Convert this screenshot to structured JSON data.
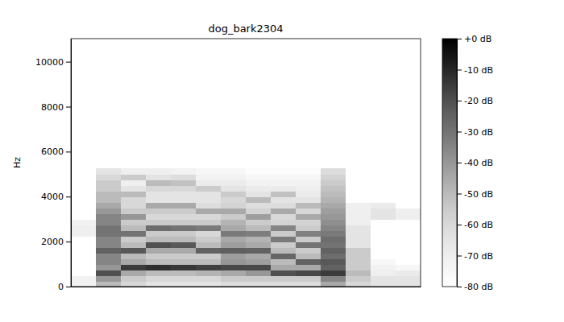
{
  "chart_data": {
    "type": "heatmap",
    "title": "dog_bark2304",
    "ylabel": "Hz",
    "xlim": [
      0,
      1.4
    ],
    "ylim": [
      0,
      11025
    ],
    "yticks": [
      0,
      2000,
      4000,
      6000,
      8000,
      10000
    ],
    "tick_labels": "y",
    "x": [
      0,
      0.1,
      0.2,
      0.3,
      0.4,
      0.5,
      0.6,
      0.7,
      0.8,
      0.9,
      1.0,
      1.1,
      1.2,
      1.3,
      1.4
    ],
    "y": [
      0,
      250,
      500,
      750,
      1000,
      1250,
      1500,
      1750,
      2000,
      2250,
      2500,
      2750,
      3000,
      3250,
      3500,
      3750,
      4000,
      4250,
      4500,
      4750,
      5000,
      5250
    ],
    "z": [
      [
        -72,
        -72,
        -80,
        -80,
        -80,
        -80,
        -80,
        -80,
        -80,
        -70,
        -70,
        -72,
        -80,
        -80,
        -80,
        -80,
        -80,
        -80,
        -80,
        -80,
        -80
      ],
      [
        -50,
        -40,
        -20,
        -40,
        -35,
        -35,
        -25,
        -35,
        -35,
        -30,
        -30,
        -35,
        -35,
        -40,
        -45,
        -50,
        -50,
        -55,
        -55,
        -60,
        -65
      ],
      [
        -60,
        -55,
        -45,
        -15,
        -45,
        -50,
        -22,
        -50,
        -55,
        -30,
        -50,
        -55,
        -40,
        -55,
        -60,
        -60,
        -50,
        -65,
        -70,
        -55,
        -70
      ],
      [
        -65,
        -60,
        -50,
        -12,
        -50,
        -55,
        -45,
        -20,
        -50,
        -55,
        -28,
        -55,
        -60,
        -55,
        -45,
        -65,
        -65,
        -60,
        -50,
        -65,
        -70
      ],
      [
        -65,
        -60,
        -50,
        -14,
        -50,
        -55,
        -45,
        -22,
        -50,
        -55,
        -30,
        -55,
        -60,
        -55,
        -45,
        -65,
        -65,
        -60,
        -52,
        -62,
        -72
      ],
      [
        -65,
        -60,
        -48,
        -16,
        -50,
        -55,
        -25,
        -50,
        -55,
        -60,
        -32,
        -55,
        -60,
        -45,
        -62,
        -65,
        -65,
        -55,
        -68,
        -72,
        -75
      ],
      [
        -62,
        -55,
        -45,
        -18,
        -40,
        -42,
        -24,
        -42,
        -45,
        -32,
        -45,
        -48,
        -55,
        -45,
        -58,
        -60,
        -55,
        -65,
        -68,
        -72,
        -75
      ],
      [
        -62,
        -55,
        -40,
        -18,
        -42,
        -45,
        -25,
        -45,
        -48,
        -33,
        -50,
        -55,
        -42,
        -58,
        -62,
        -50,
        -65,
        -68,
        -72,
        -75,
        -78
      ],
      [
        -62,
        -55,
        -20,
        -45,
        -50,
        -26,
        -50,
        -55,
        -32,
        -55,
        -35,
        -58,
        -60,
        -45,
        -62,
        -65,
        -52,
        -68,
        -72,
        -75,
        -78
      ],
      [
        -62,
        -55,
        -18,
        -45,
        -25,
        -50,
        -55,
        -30,
        -55,
        -34,
        -55,
        -58,
        -45,
        -60,
        -50,
        -65,
        -68,
        -70,
        -72,
        -75,
        -78
      ],
      [
        -45,
        -35,
        -15,
        -25,
        -22,
        -28,
        -25,
        -30,
        -28,
        -32,
        -35,
        -38,
        -40,
        -42,
        -45,
        -48,
        -50,
        -52,
        -55,
        -58,
        -62
      ],
      [
        -60,
        -55,
        -50,
        -55,
        -55,
        -55,
        -55,
        -65,
        -65,
        -65,
        -65,
        -70,
        -70,
        -70,
        -70,
        -80,
        -80,
        -80,
        -80,
        -80,
        -80
      ],
      [
        -65,
        -65,
        -70,
        -72,
        -75,
        -80,
        -80,
        -80,
        -80,
        -80,
        -80,
        -80,
        -65,
        -65,
        -68,
        -80,
        -80,
        -80,
        -80,
        -80,
        -80
      ],
      [
        -65,
        -65,
        -68,
        -75,
        -80,
        -80,
        -80,
        -80,
        -80,
        -80,
        -80,
        -80,
        -70,
        -70,
        -80,
        -80,
        -80,
        -80,
        -80,
        -80,
        -80
      ]
    ],
    "colorbar": {
      "range": [
        -80,
        0
      ],
      "ticks": [
        {
          "value": 0,
          "label": "+0 dB"
        },
        {
          "value": -10,
          "label": "-10 dB"
        },
        {
          "value": -20,
          "label": "-20 dB"
        },
        {
          "value": -30,
          "label": "-30 dB"
        },
        {
          "value": -40,
          "label": "-40 dB"
        },
        {
          "value": -50,
          "label": "-50 dB"
        },
        {
          "value": -60,
          "label": "-60 dB"
        },
        {
          "value": -70,
          "label": "-70 dB"
        },
        {
          "value": -80,
          "label": "-80 dB"
        }
      ]
    }
  }
}
